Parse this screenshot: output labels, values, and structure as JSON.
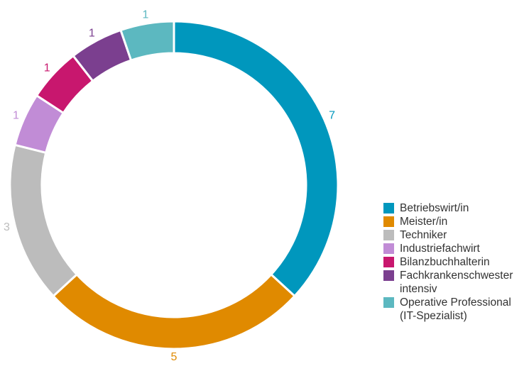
{
  "chart_data": {
    "type": "donut",
    "categories": [
      "Betriebswirt/in",
      "Meister/in",
      "Techniker",
      "Industriefachwirt",
      "Bilanzbuchhalterin",
      "Fachkrankenschwester intensiv",
      "Operative Professional (IT-Spezialist)"
    ],
    "values": [
      7,
      5,
      3,
      1,
      1,
      1,
      1
    ],
    "colors": [
      "#0097bd",
      "#e08a00",
      "#bcbcbc",
      "#c18cd6",
      "#c8176e",
      "#7b3f8f",
      "#5cb8c0"
    ],
    "legend": "right"
  }
}
